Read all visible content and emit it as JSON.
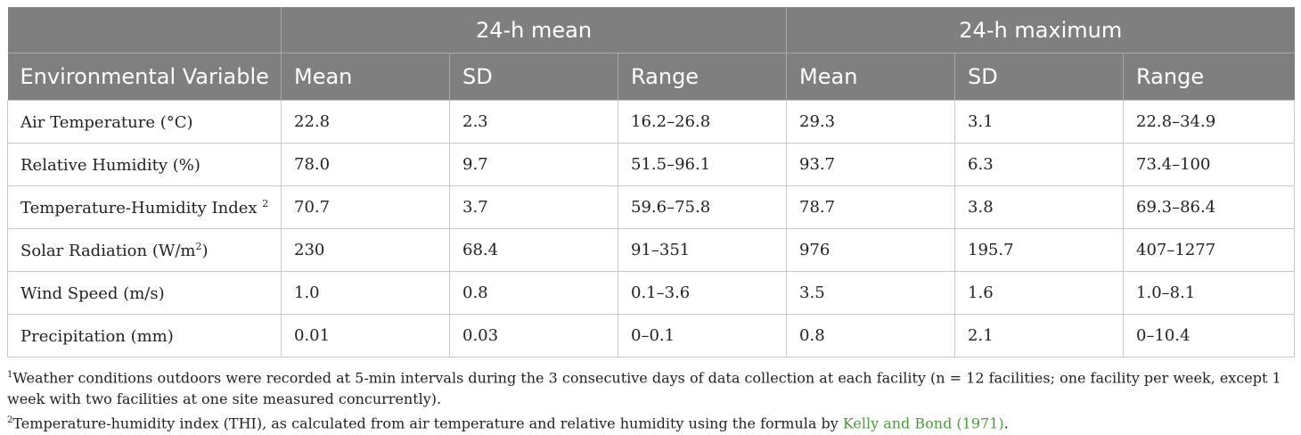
{
  "table": {
    "group_headers": [
      "24-h mean",
      "24-h maximum"
    ],
    "column_headers": [
      "Environmental Variable",
      "Mean",
      "SD",
      "Range",
      "Mean",
      "SD",
      "Range"
    ],
    "rows": [
      {
        "variable": "Air Temperature (°C)",
        "sup": "",
        "suffix": "",
        "cells": [
          "22.8",
          "2.3",
          "16.2–26.8",
          "29.3",
          "3.1",
          "22.8–34.9"
        ]
      },
      {
        "variable": "Relative Humidity (%)",
        "sup": "",
        "suffix": "",
        "cells": [
          "78.0",
          "9.7",
          "51.5–96.1",
          "93.7",
          "6.3",
          "73.4–100"
        ]
      },
      {
        "variable": "Temperature-Humidity Index ",
        "sup": "2",
        "suffix": "",
        "cells": [
          "70.7",
          "3.7",
          "59.6–75.8",
          "78.7",
          "3.8",
          "69.3–86.4"
        ]
      },
      {
        "variable": "Solar Radiation (W/m",
        "sup": "2",
        "suffix": ")",
        "cells": [
          "230",
          "68.4",
          "91–351",
          "976",
          "195.7",
          "407–1277"
        ]
      },
      {
        "variable": "Wind Speed (m/s)",
        "sup": "",
        "suffix": "",
        "cells": [
          "1.0",
          "0.8",
          "0.1–3.6",
          "3.5",
          "1.6",
          "1.0–8.1"
        ]
      },
      {
        "variable": "Precipitation (mm)",
        "sup": "",
        "suffix": "",
        "cells": [
          "0.01",
          "0.03",
          "0–0.1",
          "0.8",
          "2.1",
          "0–10.4"
        ]
      }
    ]
  },
  "footnotes": {
    "note1": {
      "marker": "1",
      "text": "Weather conditions outdoors were recorded at 5-min intervals during the 3 consecutive days of data collection at each facility (n = 12 facilities; one facility per week, except 1 week with two facilities at one site measured concurrently)."
    },
    "note2": {
      "marker": "2",
      "text": "Temperature-humidity index (THI), as calculated from air temperature and relative humidity using the formula by ",
      "link_text": "Kelly and Bond (1971)",
      "end": "."
    }
  }
}
